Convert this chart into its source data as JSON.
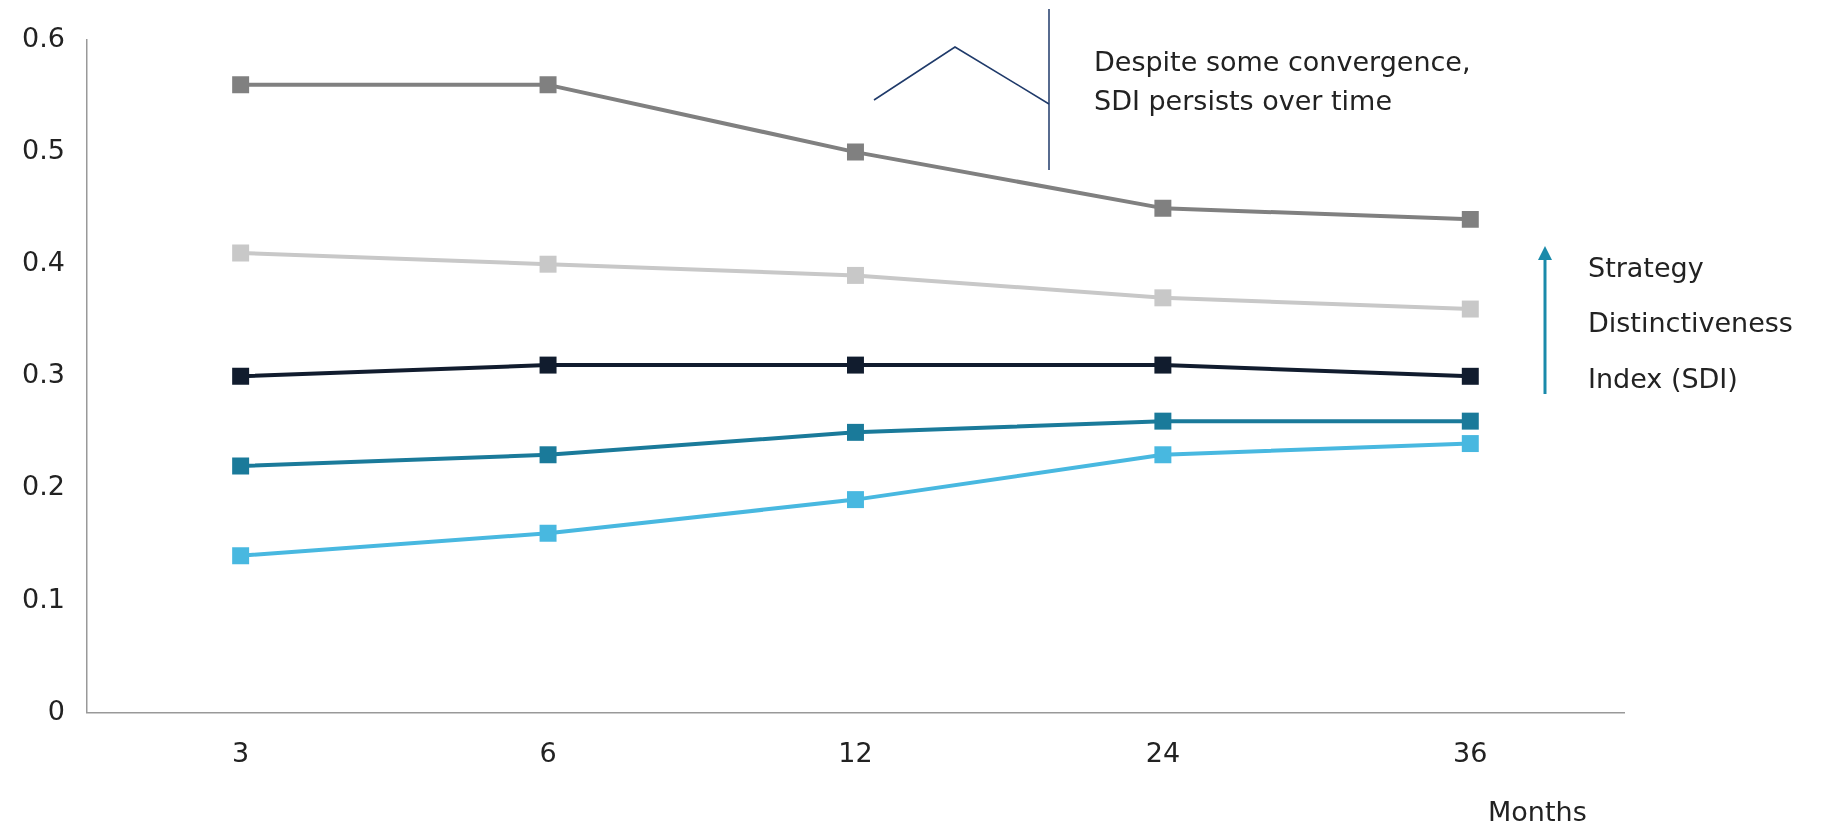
{
  "chart_data": {
    "type": "line",
    "xlabel": "Months",
    "categories": [
      "3",
      "6",
      "12",
      "24",
      "36"
    ],
    "series": [
      {
        "color": "#808080",
        "values": [
          0.56,
          0.56,
          0.5,
          0.45,
          0.44
        ]
      },
      {
        "color": "#c8c8c8",
        "values": [
          0.41,
          0.4,
          0.39,
          0.37,
          0.36
        ]
      },
      {
        "color": "#111c2e",
        "values": [
          0.3,
          0.31,
          0.31,
          0.31,
          0.3
        ]
      },
      {
        "color": "#1a7a9a",
        "values": [
          0.22,
          0.23,
          0.25,
          0.26,
          0.26
        ]
      },
      {
        "color": "#48b8e0",
        "values": [
          0.14,
          0.16,
          0.19,
          0.23,
          0.24
        ]
      }
    ],
    "ylim": [
      0,
      0.6
    ],
    "yticks": [
      0,
      0.1,
      0.2,
      0.3,
      0.4,
      0.5,
      0.6
    ],
    "grid": false,
    "legend": false,
    "marker": "square",
    "line_style": "solid",
    "annotations": [
      "Despite some convergence, SDI persists over time",
      "Strategy Distinctiveness Index (SDI)"
    ]
  }
}
